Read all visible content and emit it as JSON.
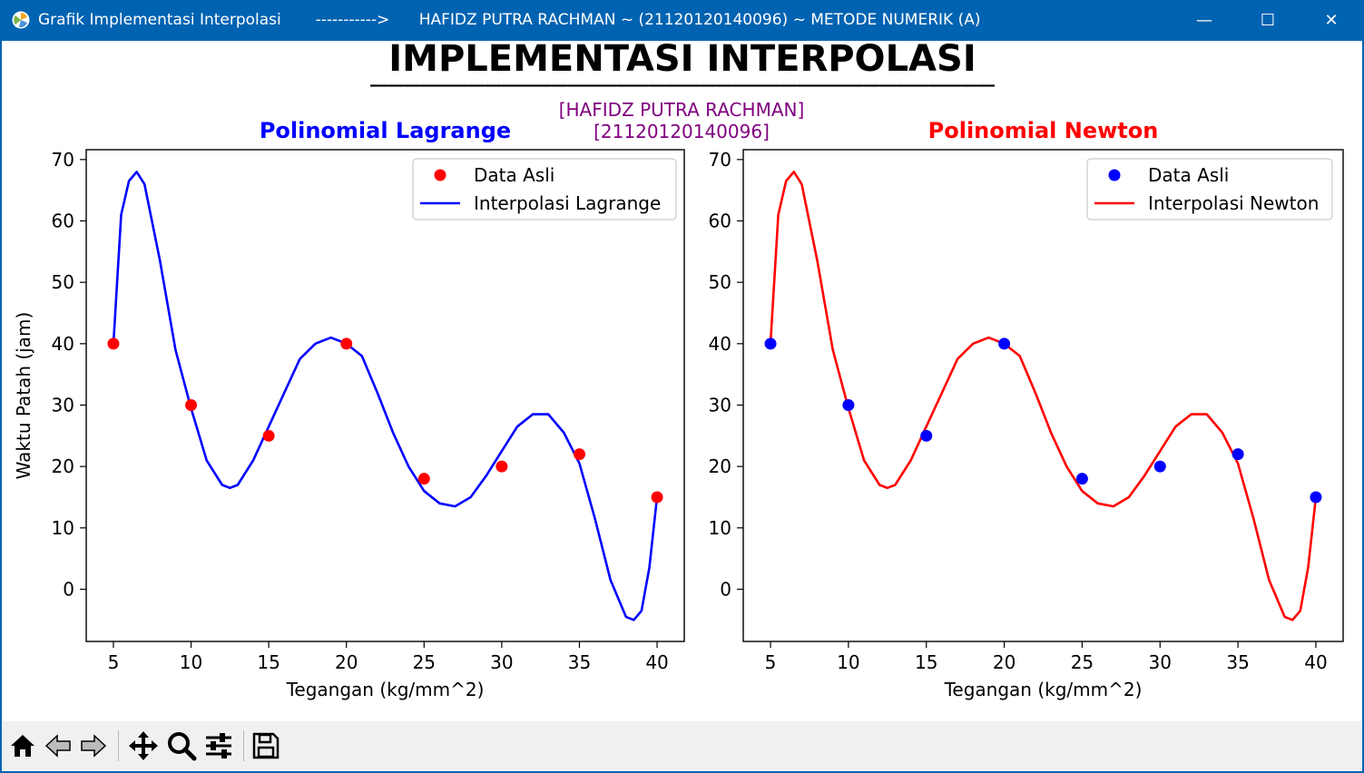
{
  "window": {
    "title": "Grafik Implementasi Interpolasi       ----------->      HAFIDZ PUTRA RACHMAN ~ (21120120140096) ~ METODE NUMERIK (A)",
    "controls": {
      "minimize": "—",
      "maximize": "☐",
      "close": "✕"
    }
  },
  "figure": {
    "suptitle": "IMPLEMENTASI INTERPOLASI",
    "underline": "______________________________________",
    "name_line": "[HAFIDZ PUTRA RACHMAN]",
    "nim_line": "[21120120140096]"
  },
  "chart_data": [
    {
      "type": "line",
      "title": "Polinomial Lagrange",
      "title_color": "#0000ff",
      "xlabel": "Tegangan (kg/mm^2)",
      "ylabel": "Waktu Patah (jam)",
      "xlim": [
        3.25,
        41.75
      ],
      "ylim": [
        -8.5,
        71.6
      ],
      "xticks": [
        5,
        10,
        15,
        20,
        25,
        30,
        35,
        40
      ],
      "yticks": [
        0,
        10,
        20,
        30,
        40,
        50,
        60,
        70
      ],
      "grid": false,
      "legend_position": "top-right",
      "series": [
        {
          "name": "Data Asli",
          "kind": "scatter",
          "color": "#ff0000",
          "x": [
            5,
            10,
            15,
            20,
            25,
            30,
            35,
            40
          ],
          "y": [
            40,
            30,
            25,
            40,
            18,
            20,
            22,
            15
          ]
        },
        {
          "name": "Interpolasi Lagrange",
          "kind": "line",
          "color": "#0000ff",
          "x": [
            5,
            5.5,
            6,
            6.5,
            7,
            8,
            9,
            10,
            11,
            12,
            12.5,
            13,
            14,
            15,
            16,
            17,
            18,
            19,
            20,
            21,
            22,
            23,
            24,
            25,
            26,
            27,
            28,
            29,
            30,
            31,
            32,
            33,
            34,
            35,
            36,
            37,
            38,
            38.5,
            39,
            39.5,
            40
          ],
          "y": [
            40,
            61,
            66.5,
            68,
            66,
            53.5,
            39,
            29.5,
            21,
            17,
            16.5,
            17,
            21,
            26.5,
            32,
            37.5,
            40,
            41,
            40,
            38,
            32,
            25.5,
            20,
            16,
            14,
            13.5,
            15,
            18.5,
            22.5,
            26.5,
            28.5,
            28.5,
            25.5,
            20.5,
            11.5,
            1.5,
            -4.5,
            -5,
            -3.5,
            3.5,
            15
          ]
        }
      ]
    },
    {
      "type": "line",
      "title": "Polinomial Newton",
      "title_color": "#ff0000",
      "xlabel": "Tegangan (kg/mm^2)",
      "ylabel": "",
      "xlim": [
        3.25,
        41.75
      ],
      "ylim": [
        -8.5,
        71.6
      ],
      "xticks": [
        5,
        10,
        15,
        20,
        25,
        30,
        35,
        40
      ],
      "yticks": [
        0,
        10,
        20,
        30,
        40,
        50,
        60,
        70
      ],
      "grid": false,
      "legend_position": "top-right",
      "series": [
        {
          "name": "Data Asli",
          "kind": "scatter",
          "color": "#0000ff",
          "x": [
            5,
            10,
            15,
            20,
            25,
            30,
            35,
            40
          ],
          "y": [
            40,
            30,
            25,
            40,
            18,
            20,
            22,
            15
          ]
        },
        {
          "name": "Interpolasi Newton",
          "kind": "line",
          "color": "#ff0000",
          "x": [
            5,
            5.5,
            6,
            6.5,
            7,
            8,
            9,
            10,
            11,
            12,
            12.5,
            13,
            14,
            15,
            16,
            17,
            18,
            19,
            20,
            21,
            22,
            23,
            24,
            25,
            26,
            27,
            28,
            29,
            30,
            31,
            32,
            33,
            34,
            35,
            36,
            37,
            38,
            38.5,
            39,
            39.5,
            40
          ],
          "y": [
            40,
            61,
            66.5,
            68,
            66,
            53.5,
            39,
            29.5,
            21,
            17,
            16.5,
            17,
            21,
            26.5,
            32,
            37.5,
            40,
            41,
            40,
            38,
            32,
            25.5,
            20,
            16,
            14,
            13.5,
            15,
            18.5,
            22.5,
            26.5,
            28.5,
            28.5,
            25.5,
            20.5,
            11.5,
            1.5,
            -4.5,
            -5,
            -3.5,
            3.5,
            15
          ]
        }
      ]
    }
  ],
  "toolbar": {
    "items": [
      {
        "icon": "home-icon"
      },
      {
        "icon": "back-arrow-icon"
      },
      {
        "icon": "forward-arrow-icon"
      },
      {
        "icon": "pan-move-icon"
      },
      {
        "icon": "zoom-magnifier-icon"
      },
      {
        "icon": "configure-subplots-icon"
      },
      {
        "icon": "save-disk-icon"
      }
    ]
  }
}
